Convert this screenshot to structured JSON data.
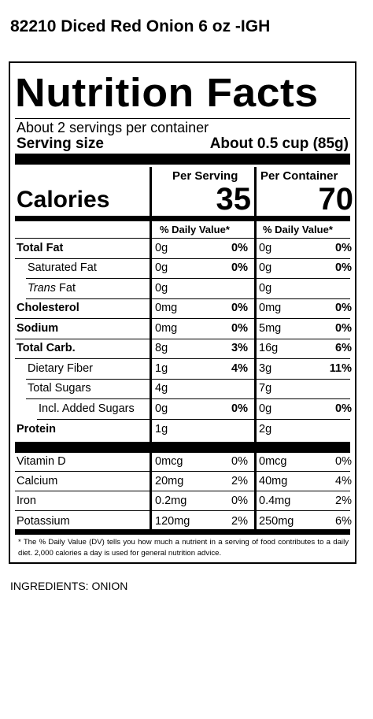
{
  "product_title": "82210 Diced Red Onion 6 oz -IGH",
  "label": {
    "title": "Nutrition Facts",
    "servings_per_container": "About 2 servings per container",
    "serving_size_label": "Serving size",
    "serving_size_value": "About 0.5 cup (85g)",
    "calories_label": "Calories",
    "per_serving_header": "Per Serving",
    "per_container_header": "Per Container",
    "calories_per_serving": "35",
    "calories_per_container": "70",
    "dv_header": "% Daily Value*",
    "nutrients": [
      {
        "label": "Total Fat",
        "serving": "0g",
        "serving_dv": "0%",
        "container": "0g",
        "container_dv": "0%"
      },
      {
        "label": "Saturated Fat",
        "serving": "0g",
        "serving_dv": "0%",
        "container": "0g",
        "container_dv": "0%"
      },
      {
        "label_italic": "Trans",
        "label": " Fat",
        "serving": "0g",
        "serving_dv": "",
        "container": "0g",
        "container_dv": ""
      },
      {
        "label": "Cholesterol",
        "serving": "0mg",
        "serving_dv": "0%",
        "container": "0mg",
        "container_dv": "0%"
      },
      {
        "label": "Sodium",
        "serving": "0mg",
        "serving_dv": "0%",
        "container": "5mg",
        "container_dv": "0%"
      },
      {
        "label": "Total Carb.",
        "serving": "8g",
        "serving_dv": "3%",
        "container": "16g",
        "container_dv": "6%"
      },
      {
        "label": "Dietary Fiber",
        "serving": "1g",
        "serving_dv": "4%",
        "container": "3g",
        "container_dv": "11%"
      },
      {
        "label": "Total Sugars",
        "serving": "4g",
        "serving_dv": "",
        "container": "7g",
        "container_dv": ""
      },
      {
        "label": "Incl. Added Sugars",
        "serving": "0g",
        "serving_dv": "0%",
        "container": "0g",
        "container_dv": "0%"
      },
      {
        "label": "Protein",
        "serving": "1g",
        "serving_dv": "",
        "container": "2g",
        "container_dv": ""
      }
    ],
    "vitamins": [
      {
        "label": "Vitamin D",
        "serving": "0mcg",
        "serving_dv": "0%",
        "container": "0mcg",
        "container_dv": "0%"
      },
      {
        "label": "Calcium",
        "serving": "20mg",
        "serving_dv": "2%",
        "container": "40mg",
        "container_dv": "4%"
      },
      {
        "label": "Iron",
        "serving": "0.2mg",
        "serving_dv": "0%",
        "container": "0.4mg",
        "container_dv": "2%"
      },
      {
        "label": "Potassium",
        "serving": "120mg",
        "serving_dv": "2%",
        "container": "250mg",
        "container_dv": "6%"
      }
    ],
    "footnote": "* The % Daily Value (DV) tells you how much a nutrient in a serving of food contributes to a daily diet. 2,000 calories a day is used for general nutrition advice."
  },
  "ingredients": "INGREDIENTS: ONION"
}
